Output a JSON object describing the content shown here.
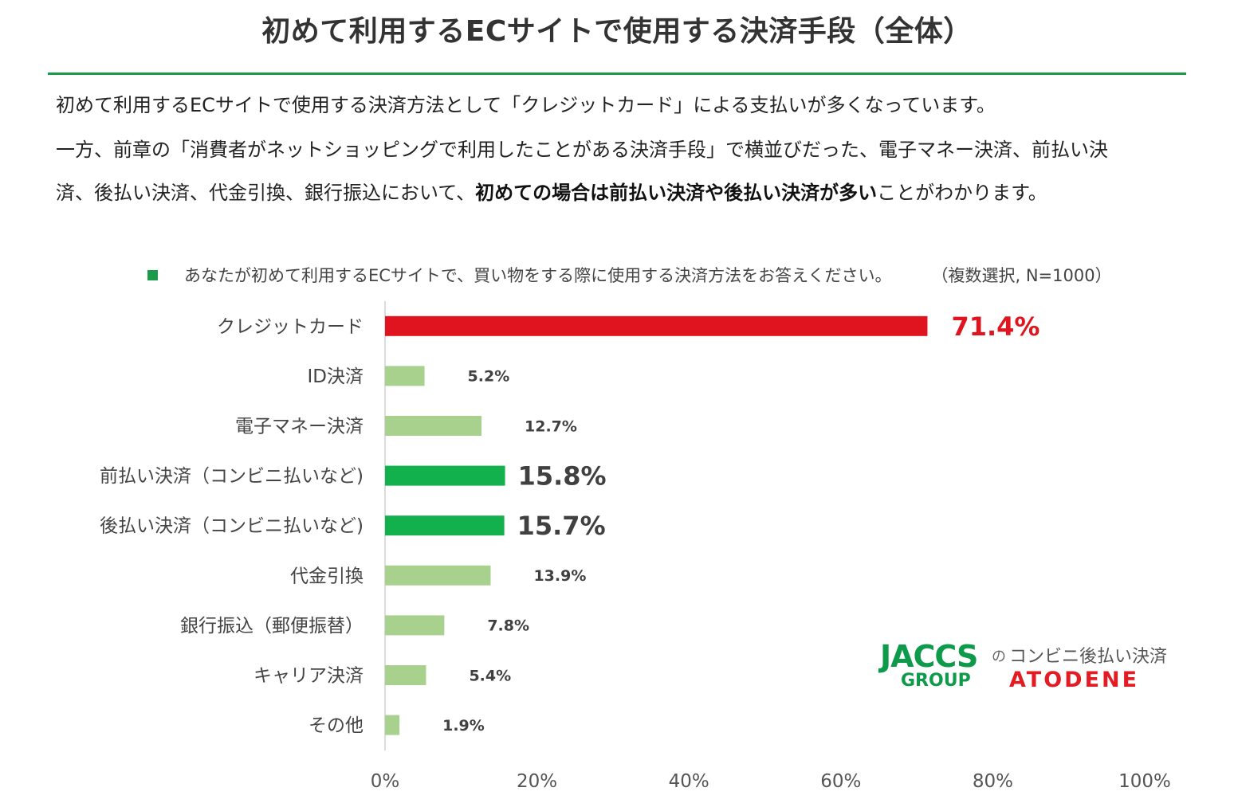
{
  "page": {
    "title": "初めて利用するECサイトで使用する決済手段（全体）",
    "description": {
      "line1": "初めて利用するECサイトで使用する決済方法として「クレジットカード」による支払いが多くなっています。",
      "line2": "一方、前章の「消費者がネットショッピングで利用したことがある決済手段」で横並びだった、電子マネー決済、前払い決",
      "line3_prefix": "済、後払い決済、代金引換、銀行振込において、",
      "line3_bold": "初めての場合は前払い決済や後払い決済が多い",
      "line3_suffix": "ことがわかります。"
    },
    "legend": {
      "label": "あなたが初めて利用するECサイトで、買い物をする際に使用する決済方法をお答えください。",
      "note": "（複数選択, N=1000）"
    },
    "logo": {
      "brand": "JACCS",
      "group": "GROUP",
      "connector": "の",
      "service": "コンビニ後払い決済",
      "product": "ATODENE"
    }
  },
  "colors": {
    "accent_green": "#1a9a4a",
    "highlight_red": "#e0141e",
    "strong_green": "#13b14d",
    "light_green": "#a9d18e"
  },
  "chart_data": {
    "type": "bar",
    "orientation": "horizontal",
    "title": "",
    "xlabel": "",
    "ylabel": "",
    "xlim": [
      0,
      100
    ],
    "x_ticks": [
      "0%",
      "20%",
      "40%",
      "60%",
      "80%",
      "100%"
    ],
    "grid": false,
    "categories": [
      "クレジットカード",
      "ID決済",
      "電子マネー決済",
      "前払い決済（コンビニ払いなど)",
      "後払い決済（コンビニ払いなど)",
      "代金引換",
      "銀行振込（郵便振替）",
      "キャリア決済",
      "その他"
    ],
    "values": [
      71.4,
      5.2,
      12.7,
      15.8,
      15.7,
      13.9,
      7.8,
      5.4,
      1.9
    ],
    "value_labels": [
      "71.4%",
      "5.2%",
      "12.7%",
      "15.8%",
      "15.7%",
      "13.9%",
      "7.8%",
      "5.4%",
      "1.9%"
    ],
    "bar_colors": [
      "#e0141e",
      "#a9d18e",
      "#a9d18e",
      "#13b14d",
      "#13b14d",
      "#a9d18e",
      "#a9d18e",
      "#a9d18e",
      "#a9d18e"
    ],
    "label_emphasis": [
      "red-large",
      "normal",
      "normal",
      "large",
      "large",
      "normal",
      "normal",
      "normal",
      "normal"
    ]
  }
}
